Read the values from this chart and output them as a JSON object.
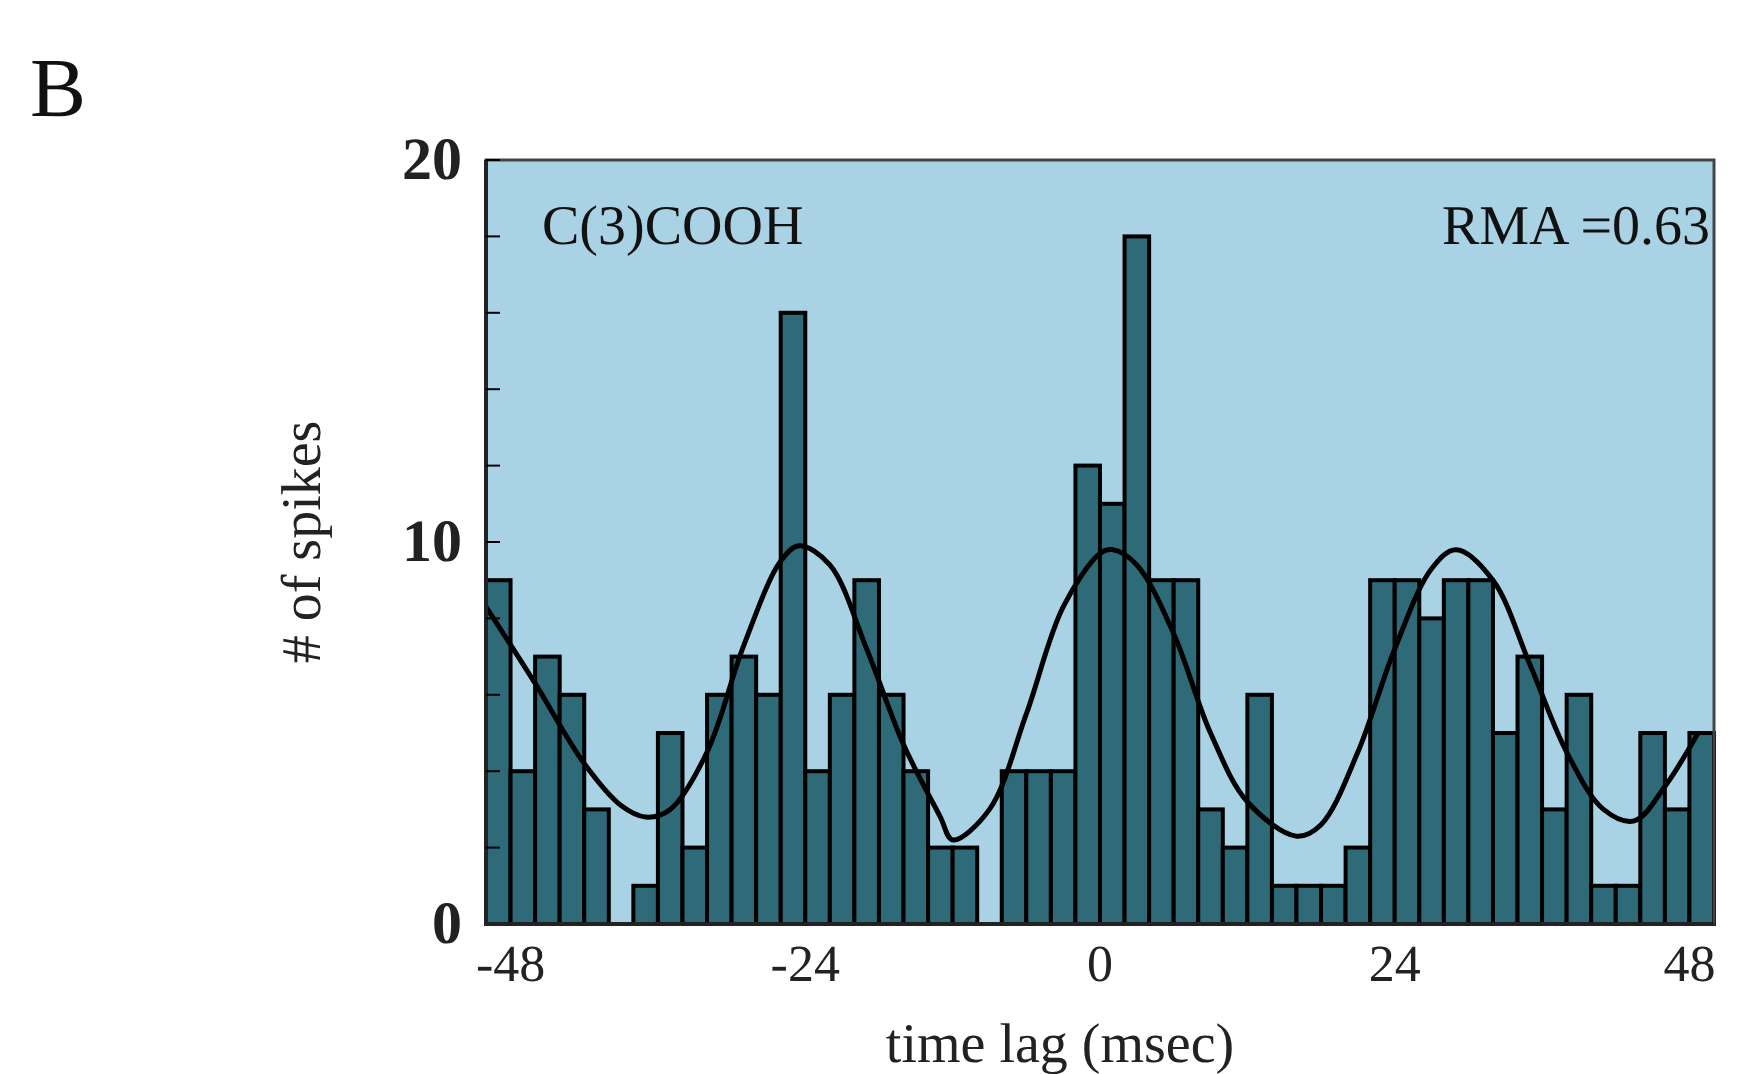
{
  "chart_data": {
    "type": "histogram",
    "xlabel": "time lag (msec)",
    "ylabel": "# of spikes",
    "annotations": [
      "B",
      "C(3)COOH",
      "RMA =0.63"
    ],
    "bins": [
      -50,
      -48,
      -46,
      -44,
      -42,
      -40,
      -38,
      -36,
      -34,
      -32,
      -30,
      -28,
      -26,
      -24,
      -22,
      -20,
      -18,
      -16,
      -14,
      -12,
      -10,
      -8,
      -6,
      -4,
      -2,
      0,
      2,
      4,
      6,
      8,
      10,
      12,
      14,
      16,
      18,
      20,
      22,
      24,
      26,
      28,
      30,
      32,
      34,
      36,
      38,
      40,
      42,
      44,
      46,
      48,
      50
    ],
    "values": [
      9,
      4,
      7,
      6,
      3,
      0,
      1,
      5,
      2,
      6,
      7,
      6,
      16,
      4,
      6,
      9,
      6,
      4,
      2,
      2,
      0,
      4,
      4,
      4,
      12,
      11,
      18,
      9,
      9,
      3,
      2,
      6,
      1,
      1,
      1,
      2,
      9,
      9,
      8,
      9,
      9,
      5,
      7,
      3,
      6,
      1,
      1,
      5,
      3,
      5
    ],
    "color": "#2f6a78",
    "series": [
      {
        "type": "line",
        "color": "#000000",
        "x": [
          -50,
          -46,
          -42,
          -39,
          -37,
          -35,
          -32,
          -29,
          -26,
          -24.5,
          -22,
          -19,
          -16,
          -13,
          -12,
          -9,
          -6,
          -3,
          0,
          1,
          3,
          6,
          9,
          12,
          16,
          18,
          21,
          24,
          27,
          29,
          32,
          35,
          38,
          41,
          43.5,
          46,
          48.7
        ],
        "values": [
          8.3,
          6.3,
          4.2,
          3.1,
          2.8,
          3.0,
          4.5,
          7.3,
          9.5,
          9.9,
          9.4,
          7.2,
          4.7,
          2.8,
          2.2,
          3.0,
          5.5,
          8.3,
          9.7,
          9.8,
          9.4,
          7.6,
          5.0,
          3.2,
          2.3,
          2.6,
          4.5,
          7.2,
          9.3,
          9.8,
          9.0,
          6.8,
          4.5,
          3.0,
          2.7,
          3.6,
          5.0
        ]
      }
    ],
    "xlim": [
      -50,
      50
    ],
    "xticks": [
      -48,
      -24,
      0,
      24,
      48
    ],
    "ylim": [
      0,
      20
    ],
    "yticks": [
      0,
      {
        "value": 2,
        "label": null
      },
      {
        "value": 4,
        "label": null
      },
      {
        "value": 6,
        "label": null
      },
      {
        "value": 8,
        "label": null
      },
      10,
      {
        "value": 12,
        "label": null
      },
      {
        "value": 14,
        "label": null
      },
      {
        "value": 16,
        "label": null
      },
      {
        "value": 18,
        "label": null
      },
      20
    ],
    "grid": false
  }
}
